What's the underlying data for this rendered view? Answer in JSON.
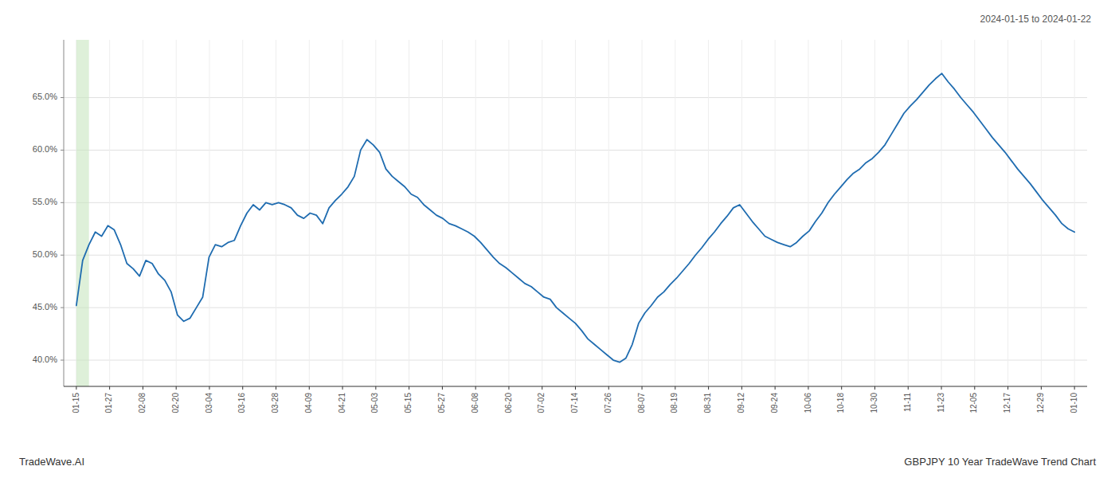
{
  "chart_data": {
    "type": "line",
    "color": "#1f6cb0",
    "grid": true,
    "annotations": [
      "2024-01-15 to 2024-01-22",
      "TradeWave.AI",
      "GBPJPY 10 Year TradeWave Trend Chart"
    ],
    "highlight_x": [
      0,
      2
    ],
    "x": [
      0,
      1,
      2,
      3,
      4,
      5,
      6,
      7,
      8,
      9,
      10,
      11,
      12,
      13,
      14,
      15,
      16,
      17,
      18,
      19,
      20,
      21,
      22,
      23,
      24,
      25,
      26,
      27,
      28,
      29,
      30,
      31,
      32,
      33,
      34,
      35,
      36,
      37,
      38,
      39,
      40,
      41,
      42,
      43,
      44,
      45,
      46,
      47,
      48,
      49,
      50,
      51,
      52,
      53,
      54,
      55,
      56,
      57,
      58,
      59,
      60,
      61,
      62,
      63,
      64,
      65,
      66,
      67,
      68,
      69,
      70,
      71,
      72,
      73,
      74,
      75,
      76,
      77,
      78,
      79,
      80,
      81,
      82,
      83,
      84,
      85,
      86,
      87,
      88,
      89,
      90,
      91,
      92,
      93,
      94,
      95,
      96,
      97,
      98,
      99,
      100,
      101,
      102,
      103,
      104,
      105,
      106,
      107,
      108,
      109,
      110,
      111,
      112,
      113,
      114,
      115,
      116,
      117,
      118,
      119,
      120,
      121,
      122,
      123,
      124,
      125,
      126,
      127,
      128,
      129,
      130,
      131,
      132,
      133,
      134,
      135,
      136,
      137,
      138,
      139,
      140,
      141,
      142,
      143,
      144,
      145,
      146,
      147,
      148,
      149,
      150,
      151,
      152,
      153,
      154,
      155,
      156,
      157,
      158
    ],
    "values": [
      0.452,
      0.495,
      0.51,
      0.522,
      0.518,
      0.528,
      0.524,
      0.51,
      0.492,
      0.487,
      0.48,
      0.495,
      0.492,
      0.482,
      0.476,
      0.465,
      0.443,
      0.437,
      0.44,
      0.45,
      0.46,
      0.498,
      0.51,
      0.508,
      0.512,
      0.514,
      0.528,
      0.54,
      0.548,
      0.543,
      0.55,
      0.548,
      0.55,
      0.548,
      0.545,
      0.538,
      0.535,
      0.54,
      0.538,
      0.53,
      0.545,
      0.552,
      0.558,
      0.565,
      0.575,
      0.6,
      0.61,
      0.605,
      0.598,
      0.582,
      0.575,
      0.57,
      0.565,
      0.558,
      0.555,
      0.548,
      0.543,
      0.538,
      0.535,
      0.53,
      0.528,
      0.525,
      0.522,
      0.518,
      0.512,
      0.505,
      0.498,
      0.492,
      0.488,
      0.483,
      0.478,
      0.473,
      0.47,
      0.465,
      0.46,
      0.458,
      0.45,
      0.445,
      0.44,
      0.435,
      0.428,
      0.42,
      0.415,
      0.41,
      0.405,
      0.4,
      0.398,
      0.402,
      0.415,
      0.435,
      0.445,
      0.452,
      0.46,
      0.465,
      0.472,
      0.478,
      0.485,
      0.492,
      0.5,
      0.507,
      0.515,
      0.522,
      0.53,
      0.537,
      0.545,
      0.548,
      0.54,
      0.532,
      0.525,
      0.518,
      0.515,
      0.512,
      0.51,
      0.508,
      0.512,
      0.518,
      0.523,
      0.532,
      0.54,
      0.55,
      0.558,
      0.565,
      0.572,
      0.578,
      0.582,
      0.588,
      0.592,
      0.598,
      0.605,
      0.615,
      0.625,
      0.635,
      0.642,
      0.648,
      0.655,
      0.662,
      0.668,
      0.673,
      0.665,
      0.658,
      0.65,
      0.643,
      0.636,
      0.628,
      0.62,
      0.612,
      0.605,
      0.598,
      0.59,
      0.582,
      0.575,
      0.568,
      0.56,
      0.552,
      0.545,
      0.538,
      0.53,
      0.525,
      0.522
    ],
    "xlim": [
      -2,
      160
    ],
    "xticks": [
      {
        "value": 0,
        "label": "01-15"
      },
      {
        "value": 5.266666666666667,
        "label": "01-27"
      },
      {
        "value": 10.533333333333333,
        "label": "02-08"
      },
      {
        "value": 15.8,
        "label": "02-20"
      },
      {
        "value": 21.066666666666666,
        "label": "03-04"
      },
      {
        "value": 26.333333333333332,
        "label": "03-16"
      },
      {
        "value": 31.6,
        "label": "03-28"
      },
      {
        "value": 36.86666666666667,
        "label": "04-09"
      },
      {
        "value": 42.13333333333333,
        "label": "04-21"
      },
      {
        "value": 47.4,
        "label": "05-03"
      },
      {
        "value": 52.666666666666664,
        "label": "05-15"
      },
      {
        "value": 57.93333333333333,
        "label": "05-27"
      },
      {
        "value": 63.2,
        "label": "06-08"
      },
      {
        "value": 68.46666666666667,
        "label": "06-20"
      },
      {
        "value": 73.73333333333333,
        "label": "07-02"
      },
      {
        "value": 79,
        "label": "07-14"
      },
      {
        "value": 84.26666666666667,
        "label": "07-26"
      },
      {
        "value": 89.53333333333333,
        "label": "08-07"
      },
      {
        "value": 94.8,
        "label": "08-19"
      },
      {
        "value": 100.06666666666666,
        "label": "08-31"
      },
      {
        "value": 105.33333333333333,
        "label": "09-12"
      },
      {
        "value": 110.6,
        "label": "09-24"
      },
      {
        "value": 115.86666666666666,
        "label": "10-06"
      },
      {
        "value": 121.13333333333334,
        "label": "10-18"
      },
      {
        "value": 126.4,
        "label": "10-30"
      },
      {
        "value": 131.66666666666666,
        "label": "11-11"
      },
      {
        "value": 136.93333333333334,
        "label": "11-23"
      },
      {
        "value": 142.2,
        "label": "12-05"
      },
      {
        "value": 147.46666666666667,
        "label": "12-17"
      },
      {
        "value": 152.73333333333332,
        "label": "12-29"
      },
      {
        "value": 158,
        "label": "01-10"
      }
    ],
    "ylim": [
      0.375,
      0.705
    ],
    "yticks": [
      {
        "value": 0.4,
        "label": "40.0%"
      },
      {
        "value": 0.45,
        "label": "45.0%"
      },
      {
        "value": 0.5,
        "label": "50.0%"
      },
      {
        "value": 0.55,
        "label": "55.0%"
      },
      {
        "value": 0.6,
        "label": "60.0%"
      },
      {
        "value": 0.65,
        "label": "65.0%"
      }
    ]
  }
}
